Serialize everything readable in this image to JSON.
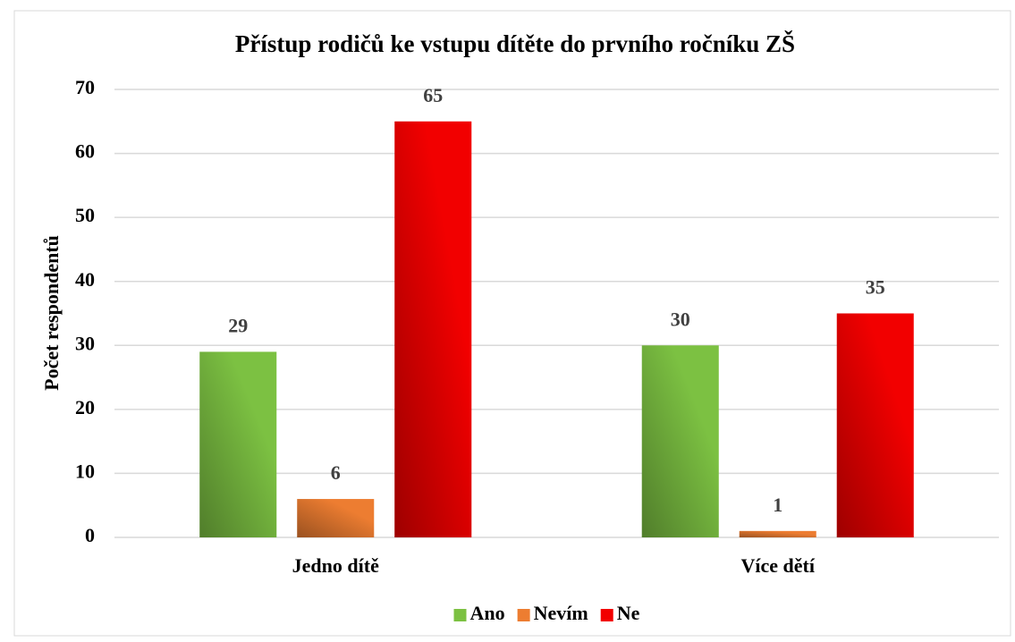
{
  "chart_data": {
    "type": "bar",
    "title": "Přístup rodičů ke vstupu dítěte do prvního ročníku ZŠ",
    "ylabel": "Počet respondentů",
    "categories": [
      "Jedno dítě",
      "Více dětí"
    ],
    "series": [
      {
        "name": "Ano",
        "color": "#7cc142",
        "values": [
          29,
          30
        ]
      },
      {
        "name": "Nevím",
        "color": "#ed7d31",
        "values": [
          6,
          1
        ]
      },
      {
        "name": "Ne",
        "color": "#f20000",
        "values": [
          65,
          35
        ]
      }
    ],
    "ylim": [
      0,
      70
    ],
    "yticks": [
      0,
      10,
      20,
      30,
      40,
      50,
      60,
      70
    ],
    "grid": true,
    "legend": "bottom"
  }
}
